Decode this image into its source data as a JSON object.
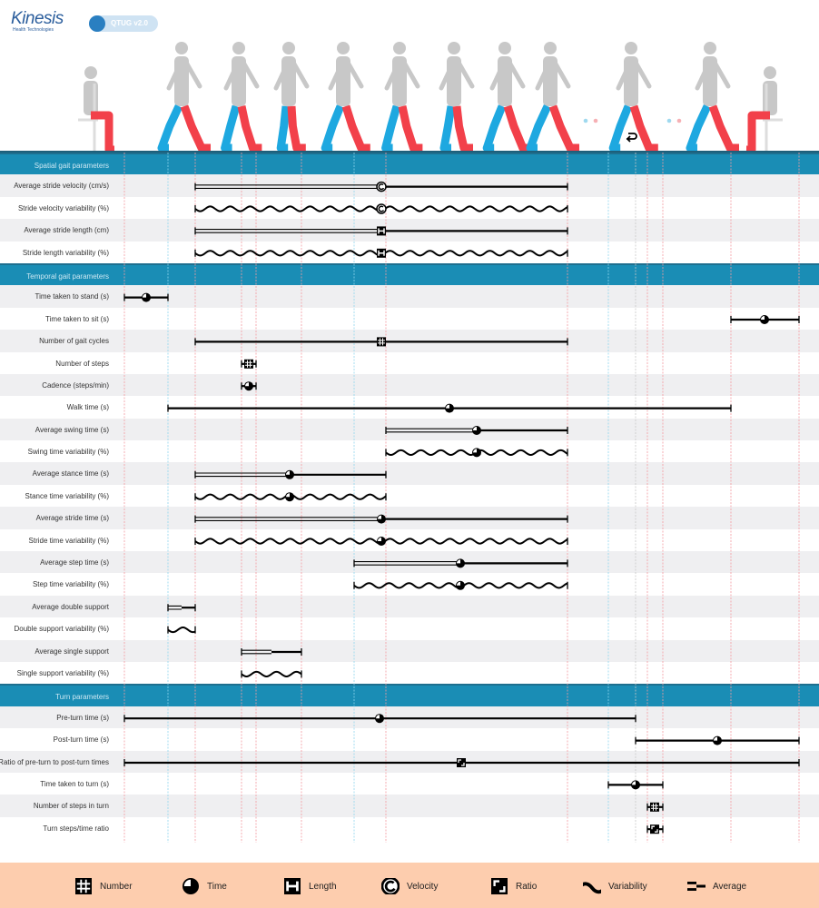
{
  "brand": {
    "logo_text": "Kinesis",
    "logo_subtext": "Health Technologies",
    "app_badge": "QTUG v2.0"
  },
  "colors": {
    "header_band": "#1a8db5",
    "left_leg": "#1ea8e0",
    "right_leg": "#f2404a",
    "body": "#c8c8c8",
    "legend_bg": "#fdcdae",
    "row_alt": "#efeff1"
  },
  "turn_icon": "turn-arrow-icon",
  "sections": [
    {
      "title": "Spatial gait parameters",
      "rows": [
        {
          "label": "Average stride velocity (cm/s)",
          "style": "average",
          "marker": "velocity"
        },
        {
          "label": "Stride velocity variability (%)",
          "style": "variability",
          "marker": "velocity"
        },
        {
          "label": "Average stride length (cm)",
          "style": "average",
          "marker": "length"
        },
        {
          "label": "Stride length variability (%)",
          "style": "variability",
          "marker": "length"
        }
      ]
    },
    {
      "title": "Temporal gait parameters",
      "rows": [
        {
          "label": "Time taken to stand (s)",
          "style": "plain",
          "marker": "time"
        },
        {
          "label": "Time taken to sit (s)",
          "style": "plain",
          "marker": "time"
        },
        {
          "label": "Number of gait cycles",
          "style": "plain",
          "marker": "number"
        },
        {
          "label": "Number of steps",
          "style": "plain",
          "marker": "number"
        },
        {
          "label": "Cadence (steps/min)",
          "style": "plain",
          "marker": "time"
        },
        {
          "label": "Walk time (s)",
          "style": "plain",
          "marker": "time"
        },
        {
          "label": "Average swing time (s)",
          "style": "average",
          "marker": "time"
        },
        {
          "label": "Swing time variability (%)",
          "style": "variability",
          "marker": "time"
        },
        {
          "label": "Average stance time (s)",
          "style": "average",
          "marker": "time"
        },
        {
          "label": "Stance time variability (%)",
          "style": "variability",
          "marker": "time"
        },
        {
          "label": "Average stride time (s)",
          "style": "average",
          "marker": "time"
        },
        {
          "label": "Stride time variability (%)",
          "style": "variability",
          "marker": "time"
        },
        {
          "label": "Average step time (s)",
          "style": "average",
          "marker": "time"
        },
        {
          "label": "Step time variability (%)",
          "style": "variability",
          "marker": "time"
        },
        {
          "label": "Average double support",
          "style": "average",
          "marker": "none"
        },
        {
          "label": "Double support variability (%)",
          "style": "variability",
          "marker": "none"
        },
        {
          "label": "Average single support",
          "style": "average",
          "marker": "none"
        },
        {
          "label": "Single support variability (%)",
          "style": "variability",
          "marker": "none"
        }
      ]
    },
    {
      "title": "Turn parameters",
      "rows": [
        {
          "label": "Pre-turn time (s)",
          "style": "plain",
          "marker": "time"
        },
        {
          "label": "Post-turn time (s)",
          "style": "plain",
          "marker": "time"
        },
        {
          "label": "Ratio of pre-turn to post-turn times",
          "style": "plain",
          "marker": "ratio"
        },
        {
          "label": "Time taken to turn (s)",
          "style": "plain",
          "marker": "time"
        },
        {
          "label": "Number of steps in turn",
          "style": "plain",
          "marker": "number"
        },
        {
          "label": "Turn steps/time ratio",
          "style": "plain",
          "marker": "ratio"
        }
      ]
    }
  ],
  "legend": [
    {
      "icon": "number",
      "label": "Number"
    },
    {
      "icon": "time",
      "label": "Time"
    },
    {
      "icon": "length",
      "label": "Length"
    },
    {
      "icon": "velocity",
      "label": "Velocity"
    },
    {
      "icon": "ratio",
      "label": "Ratio"
    },
    {
      "icon": "variability",
      "label": "Variability"
    },
    {
      "icon": "average",
      "label": "Average"
    }
  ]
}
